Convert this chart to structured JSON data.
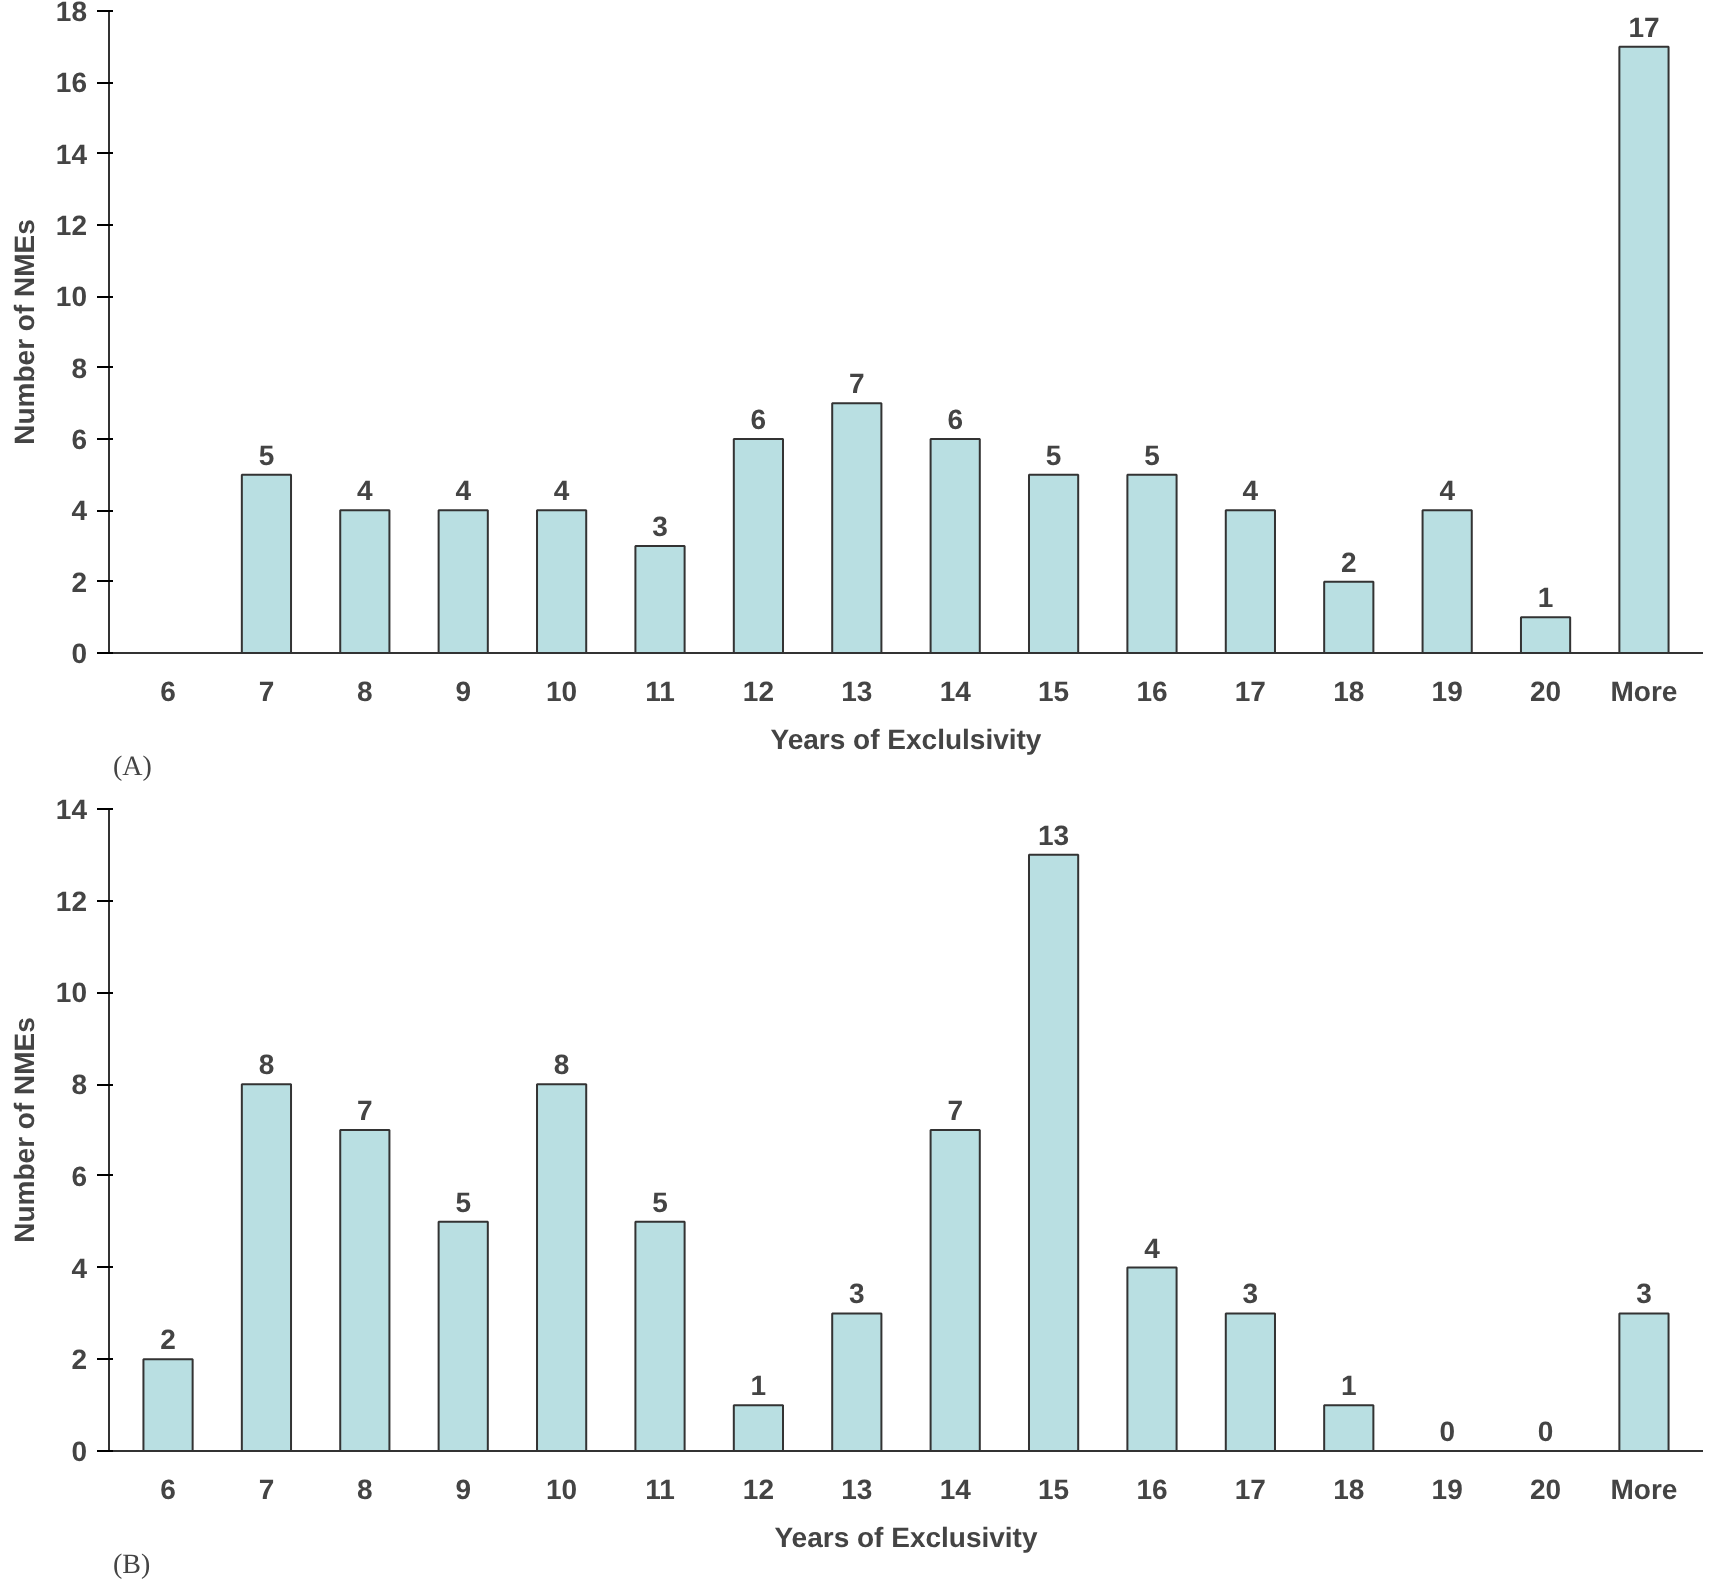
{
  "chart_data": [
    {
      "type": "bar",
      "xlabel": "Years of Exclulsivity",
      "ylabel": "Number of NMEs",
      "categories": [
        "6",
        "7",
        "8",
        "9",
        "10",
        "11",
        "12",
        "13",
        "14",
        "15",
        "16",
        "17",
        "18",
        "19",
        "20",
        "More"
      ],
      "values": [
        0,
        5,
        4,
        4,
        4,
        3,
        6,
        7,
        6,
        5,
        5,
        4,
        2,
        4,
        1,
        17
      ],
      "value_labels": [
        null,
        "5",
        "4",
        "4",
        "4",
        "3",
        "6",
        "7",
        "6",
        "5",
        "5",
        "4",
        "2",
        "4",
        "1",
        "17"
      ],
      "color": "#b9dfe2",
      "ylim": [
        0,
        18
      ],
      "yticks": [
        0,
        2,
        4,
        6,
        8,
        10,
        12,
        14,
        16,
        18
      ],
      "grid": false,
      "annotations": [
        "(A)"
      ]
    },
    {
      "type": "bar",
      "xlabel": "Years of Exclusivity",
      "ylabel": "Number of NMEs",
      "categories": [
        "6",
        "7",
        "8",
        "9",
        "10",
        "11",
        "12",
        "13",
        "14",
        "15",
        "16",
        "17",
        "18",
        "19",
        "20",
        "More"
      ],
      "values": [
        2,
        8,
        7,
        5,
        8,
        5,
        1,
        3,
        7,
        13,
        4,
        3,
        1,
        0,
        0,
        3
      ],
      "data_labels": true,
      "color": "#b9dfe2",
      "ylim": [
        0,
        14
      ],
      "yticks": [
        0,
        2,
        4,
        6,
        8,
        10,
        12,
        14
      ],
      "grid": false,
      "annotations": [
        "(B)"
      ]
    }
  ]
}
